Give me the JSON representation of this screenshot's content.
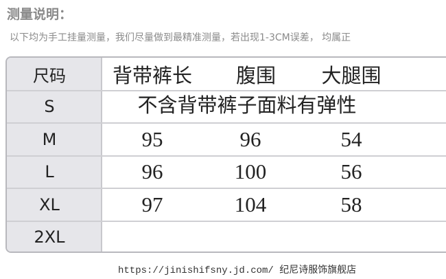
{
  "header": {
    "title": "测量说明：",
    "note": "以下均为手工挂量测量，我们尽量做到最精准测量，若出现1-3CM误差，  均属正"
  },
  "table": {
    "header": [
      "尺码",
      "背带裤长",
      "腹围",
      "大腿围"
    ],
    "rows": [
      [
        "S",
        "不含背带裤子面料有弹性"
      ],
      [
        "M",
        95,
        96,
        54
      ],
      [
        "L",
        96,
        100,
        56
      ],
      [
        "XL",
        97,
        104,
        58
      ],
      [
        "2XL"
      ]
    ]
  },
  "footer": {
    "text": "https://jinishifsny.jd.com/ 纪尼诗服饰旗舰店"
  }
}
